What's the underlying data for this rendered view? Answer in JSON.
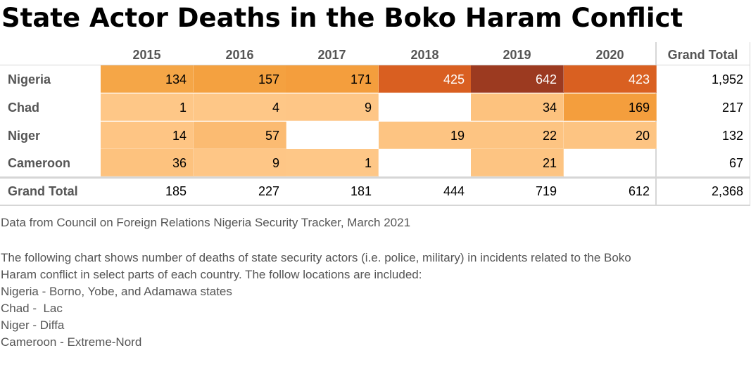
{
  "title": "State Actor Deaths in the Boko Haram Conflict",
  "chart_data": {
    "type": "heatmap",
    "title": "State Actor Deaths in the Boko Haram Conflict",
    "columns": [
      "2015",
      "2016",
      "2017",
      "2018",
      "2019",
      "2020"
    ],
    "total_label": "Grand Total",
    "rows": [
      {
        "label": "Nigeria",
        "values": [
          134,
          157,
          171,
          425,
          642,
          423
        ],
        "colors": [
          "#f5a647",
          "#f4a140",
          "#f49e3d",
          "#d95f21",
          "#9c3a20",
          "#d96021"
        ],
        "total": "1,952"
      },
      {
        "label": "Chad",
        "values": [
          1,
          4,
          9,
          null,
          34,
          169
        ],
        "colors": [
          "#fec787",
          "#fec787",
          "#fec686",
          null,
          "#fdc27e",
          "#f49e3d"
        ],
        "total": "217"
      },
      {
        "label": "Niger",
        "values": [
          14,
          57,
          null,
          19,
          22,
          20
        ],
        "colors": [
          "#fec584",
          "#fbbb72",
          null,
          "#fdc482",
          "#fdc482",
          "#fdc482"
        ],
        "total": "132"
      },
      {
        "label": "Cameroon",
        "values": [
          36,
          9,
          1,
          null,
          21,
          null
        ],
        "colors": [
          "#fdc27e",
          "#fec686",
          "#fec787",
          null,
          "#fdc482",
          null
        ],
        "total": "67"
      }
    ],
    "column_totals": [
      "185",
      "227",
      "181",
      "444",
      "719",
      "612"
    ],
    "grand_total": "2,368",
    "text_colors": {
      "dark": "#000000",
      "light": "#ffffff"
    }
  },
  "source": "Data from Council on Foreign Relations Nigeria Security Tracker, March 2021",
  "description": [
    "The following chart shows number of deaths of state security actors (i.e. police, military) in incidents related to the Boko",
    "Haram conflict in select parts of each country. The follow locations are included:",
    "Nigeria - Borno, Yobe, and Adamawa states",
    "Chad -  Lac",
    "Niger - Diffa",
    "Cameroon - Extreme-Nord"
  ]
}
